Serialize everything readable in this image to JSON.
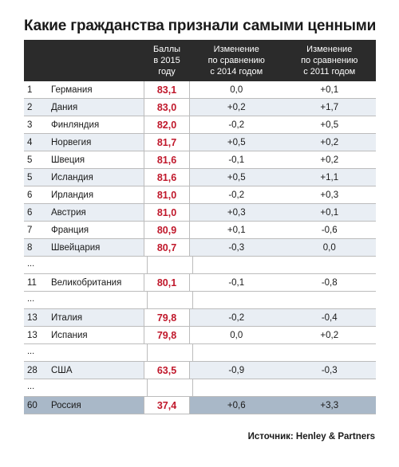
{
  "title": "Какие гражданства признали самыми ценными",
  "header": {
    "score": "Баллы\nв 2015\nгоду",
    "change_2014": "Изменение\nпо сравнению\nс 2014 годом",
    "change_2011": "Изменение\nпо сравнению\nс 2011 годом"
  },
  "rows": [
    {
      "rank": "1",
      "country": "Германия",
      "score": "83,1",
      "d2014": "0,0",
      "d2011": "+0,1"
    },
    {
      "rank": "2",
      "country": "Дания",
      "score": "83,0",
      "d2014": "+0,2",
      "d2011": "+1,7"
    },
    {
      "rank": "3",
      "country": "Финляндия",
      "score": "82,0",
      "d2014": "-0,2",
      "d2011": "+0,5"
    },
    {
      "rank": "4",
      "country": "Норвегия",
      "score": "81,7",
      "d2014": "+0,5",
      "d2011": "+0,2"
    },
    {
      "rank": "5",
      "country": "Швеция",
      "score": "81,6",
      "d2014": "-0,1",
      "d2011": "+0,2"
    },
    {
      "rank": "5",
      "country": "Исландия",
      "score": "81,6",
      "d2014": "+0,5",
      "d2011": "+1,1"
    },
    {
      "rank": "6",
      "country": "Ирландия",
      "score": "81,0",
      "d2014": "-0,2",
      "d2011": "+0,3"
    },
    {
      "rank": "6",
      "country": "Австрия",
      "score": "81,0",
      "d2014": "+0,3",
      "d2011": "+0,1"
    },
    {
      "rank": "7",
      "country": "Франция",
      "score": "80,9",
      "d2014": "+0,1",
      "d2011": "-0,6"
    },
    {
      "rank": "8",
      "country": "Швейцария",
      "score": "80,7",
      "d2014": "-0,3",
      "d2011": "0,0"
    },
    {
      "gap": true,
      "text": "..."
    },
    {
      "rank": "11",
      "country": "Великобритания",
      "score": "80,1",
      "d2014": "-0,1",
      "d2011": "-0,8"
    },
    {
      "gap": true,
      "text": "..."
    },
    {
      "rank": "13",
      "country": "Италия",
      "score": "79,8",
      "d2014": "-0,2",
      "d2011": "-0,4"
    },
    {
      "rank": "13",
      "country": "Испания",
      "score": "79,8",
      "d2014": "0,0",
      "d2011": "+0,2"
    },
    {
      "gap": true,
      "text": "..."
    },
    {
      "rank": "28",
      "country": "США",
      "score": "63,5",
      "d2014": "-0,9",
      "d2011": "-0,3"
    },
    {
      "gap": true,
      "text": "..."
    },
    {
      "rank": "60",
      "country": "Россия",
      "score": "37,4",
      "d2014": "+0,6",
      "d2011": "+3,3",
      "highlight": true
    }
  ],
  "source": "Источник: Henley & Partners",
  "colors": {
    "score": "#c0182b",
    "header_bg": "#2b2b2b",
    "shade": "#e9eef4",
    "highlight": "#a9b8c8"
  }
}
